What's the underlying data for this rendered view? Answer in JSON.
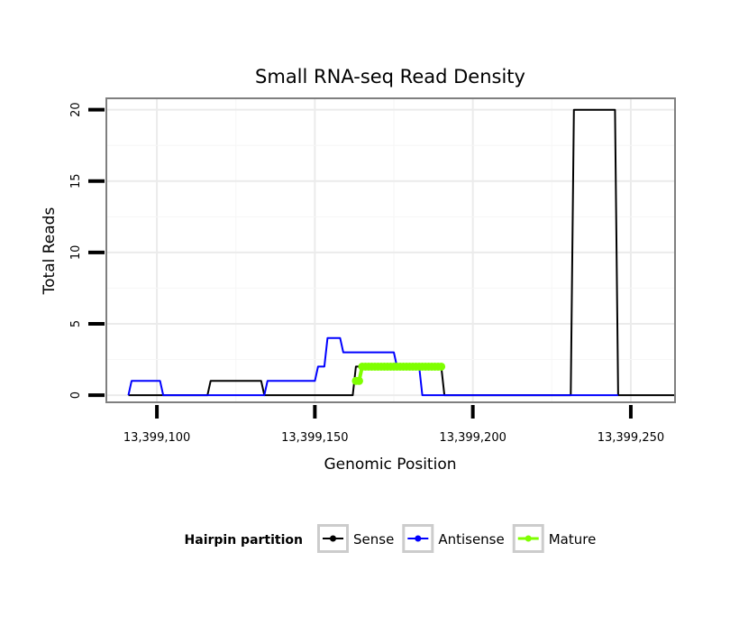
{
  "chart_data": {
    "type": "line",
    "title": "Small RNA-seq Read Density",
    "xlabel": "Genomic Position",
    "ylabel": "Total Reads",
    "xlim": [
      13399084,
      13399264
    ],
    "ylim": [
      -0.5,
      20.8
    ],
    "x_ticks": [
      13399100,
      13399150,
      13399200,
      13399250
    ],
    "x_tick_labels": [
      "13,399,100",
      "13,399,150",
      "13,399,200",
      "13,399,250"
    ],
    "y_ticks": [
      0,
      5,
      10,
      15,
      20
    ],
    "y_tick_labels": [
      "0",
      "5",
      "10",
      "15",
      "20"
    ],
    "grid": true,
    "legend": {
      "title": "Hairpin partition",
      "position": "bottom",
      "entries": [
        "Sense",
        "Antisense",
        "Mature"
      ]
    },
    "series": [
      {
        "name": "Sense",
        "color": "#000000",
        "style": "line",
        "points": [
          [
            13399091,
            0
          ],
          [
            13399116,
            0
          ],
          [
            13399117,
            1
          ],
          [
            13399133,
            1
          ],
          [
            13399134,
            0
          ],
          [
            13399162,
            0
          ],
          [
            13399163,
            2
          ],
          [
            13399190,
            2
          ],
          [
            13399191,
            0
          ],
          [
            13399231,
            0
          ],
          [
            13399232,
            20
          ],
          [
            13399245,
            20
          ],
          [
            13399246,
            0
          ],
          [
            13399264,
            0
          ]
        ]
      },
      {
        "name": "Antisense",
        "color": "#0000ff",
        "style": "line",
        "points": [
          [
            13399091,
            0
          ],
          [
            13399092,
            1
          ],
          [
            13399101,
            1
          ],
          [
            13399102,
            0
          ],
          [
            13399117,
            0
          ],
          [
            13399134,
            0
          ],
          [
            13399135,
            1
          ],
          [
            13399150,
            1
          ],
          [
            13399151,
            2
          ],
          [
            13399153,
            2
          ],
          [
            13399154,
            4
          ],
          [
            13399158,
            4
          ],
          [
            13399159,
            3
          ],
          [
            13399175,
            3
          ],
          [
            13399176,
            2
          ],
          [
            13399183,
            2
          ],
          [
            13399184,
            0
          ],
          [
            13399246,
            0
          ]
        ]
      },
      {
        "name": "Mature",
        "color": "#7fff00",
        "style": "line+points",
        "points": [
          [
            13399163,
            1
          ],
          [
            13399164,
            1
          ],
          [
            13399165,
            2
          ],
          [
            13399166,
            2
          ],
          [
            13399167,
            2
          ],
          [
            13399168,
            2
          ],
          [
            13399169,
            2
          ],
          [
            13399170,
            2
          ],
          [
            13399171,
            2
          ],
          [
            13399172,
            2
          ],
          [
            13399173,
            2
          ],
          [
            13399174,
            2
          ],
          [
            13399175,
            2
          ],
          [
            13399176,
            2
          ],
          [
            13399177,
            2
          ],
          [
            13399178,
            2
          ],
          [
            13399179,
            2
          ],
          [
            13399180,
            2
          ],
          [
            13399181,
            2
          ],
          [
            13399182,
            2
          ],
          [
            13399183,
            2
          ],
          [
            13399184,
            2
          ],
          [
            13399185,
            2
          ],
          [
            13399186,
            2
          ],
          [
            13399187,
            2
          ],
          [
            13399188,
            2
          ],
          [
            13399189,
            2
          ],
          [
            13399190,
            2
          ]
        ]
      }
    ]
  }
}
